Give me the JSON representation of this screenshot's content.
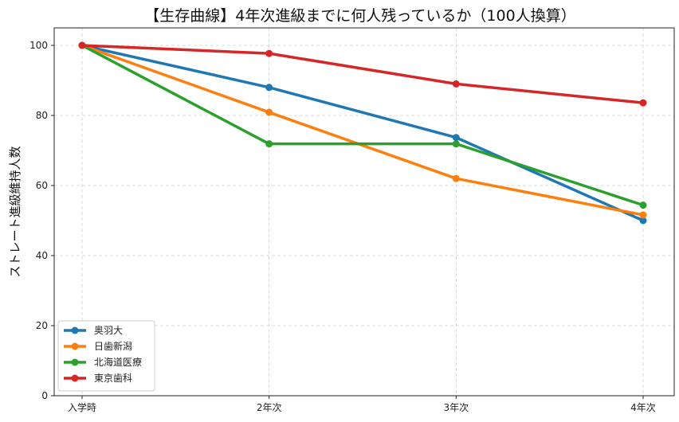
{
  "chart_data": {
    "type": "line",
    "title": "【生存曲線】4年次進級までに何人残っているか（100人換算）",
    "xlabel": "",
    "ylabel": "ストレート進級維持人数",
    "categories": [
      "入学時",
      "2年次",
      "3年次",
      "4年次"
    ],
    "ylim": [
      0,
      105
    ],
    "yticks": [
      0,
      20,
      40,
      60,
      80,
      100
    ],
    "grid": true,
    "legend_position": "bottom-left",
    "series": [
      {
        "name": "奥羽大",
        "color": "#1f77b4",
        "values": [
          100,
          88,
          73.7,
          50
        ]
      },
      {
        "name": "日歯新潟",
        "color": "#ff7f0e",
        "values": [
          100,
          80.9,
          62,
          51.6
        ]
      },
      {
        "name": "北海道医療",
        "color": "#2ca02c",
        "values": [
          100,
          71.9,
          71.9,
          54.4
        ]
      },
      {
        "name": "東京歯科",
        "color": "#d62728",
        "values": [
          100,
          97.7,
          89,
          83.6
        ]
      }
    ]
  }
}
